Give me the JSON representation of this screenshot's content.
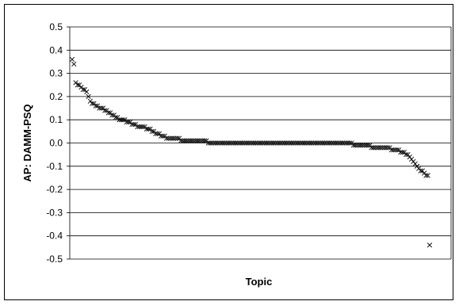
{
  "chart_data": {
    "type": "scatter",
    "title": "",
    "xlabel": "Topic",
    "ylabel": "AP: DAMM-PSQ",
    "ylim": [
      -0.5,
      0.5
    ],
    "yticks": [
      0.5,
      0.4,
      0.3,
      0.2,
      0.1,
      0.0,
      -0.1,
      -0.2,
      -0.3,
      -0.4,
      -0.5
    ],
    "ytick_labels": [
      "0.5",
      "0.4",
      "0.3",
      "0.2",
      "0.1",
      "0.0",
      "-0.1",
      "-0.2",
      "-0.3",
      "-0.4",
      "-0.5"
    ],
    "grid": "horizontal",
    "legend": "none",
    "marker": "x",
    "colors": {
      "marker": "#000000",
      "grid": "#000000",
      "background": "#ffffff"
    },
    "series": [
      {
        "values": [
          0.36,
          0.34,
          0.26,
          0.25,
          0.25,
          0.24,
          0.23,
          0.23,
          0.22,
          0.2,
          0.18,
          0.17,
          0.17,
          0.16,
          0.16,
          0.15,
          0.15,
          0.15,
          0.14,
          0.14,
          0.13,
          0.13,
          0.12,
          0.12,
          0.11,
          0.11,
          0.1,
          0.1,
          0.1,
          0.1,
          0.09,
          0.09,
          0.09,
          0.08,
          0.08,
          0.08,
          0.07,
          0.07,
          0.07,
          0.07,
          0.07,
          0.06,
          0.06,
          0.06,
          0.05,
          0.05,
          0.04,
          0.04,
          0.04,
          0.03,
          0.03,
          0.03,
          0.02,
          0.02,
          0.02,
          0.02,
          0.02,
          0.02,
          0.02,
          0.02,
          0.01,
          0.01,
          0.01,
          0.01,
          0.01,
          0.01,
          0.01,
          0.01,
          0.01,
          0.01,
          0.01,
          0.01,
          0.01,
          0.01,
          0.01,
          0.0,
          0.0,
          0.0,
          0.0,
          0.0,
          0.0,
          0.0,
          0.0,
          0.0,
          0.0,
          0.0,
          0.0,
          0.0,
          0.0,
          0.0,
          0.0,
          0.0,
          0.0,
          0.0,
          0.0,
          0.0,
          0.0,
          0.0,
          0.0,
          0.0,
          0.0,
          0.0,
          0.0,
          0.0,
          0.0,
          0.0,
          0.0,
          0.0,
          0.0,
          0.0,
          0.0,
          0.0,
          0.0,
          0.0,
          0.0,
          0.0,
          0.0,
          0.0,
          0.0,
          0.0,
          0.0,
          0.0,
          0.0,
          0.0,
          0.0,
          0.0,
          0.0,
          0.0,
          0.0,
          0.0,
          0.0,
          0.0,
          0.0,
          0.0,
          0.0,
          0.0,
          0.0,
          0.0,
          0.0,
          0.0,
          0.0,
          0.0,
          0.0,
          0.0,
          0.0,
          0.0,
          0.0,
          0.0,
          0.0,
          0.0,
          0.0,
          0.0,
          0.0,
          0.0,
          0.0,
          -0.01,
          -0.01,
          -0.01,
          -0.01,
          -0.01,
          -0.01,
          -0.01,
          -0.01,
          -0.01,
          -0.01,
          -0.02,
          -0.02,
          -0.02,
          -0.02,
          -0.02,
          -0.02,
          -0.02,
          -0.02,
          -0.02,
          -0.02,
          -0.02,
          -0.03,
          -0.03,
          -0.03,
          -0.03,
          -0.03,
          -0.04,
          -0.04,
          -0.04,
          -0.05,
          -0.05,
          -0.06,
          -0.07,
          -0.08,
          -0.09,
          -0.1,
          -0.11,
          -0.12,
          -0.12,
          -0.13,
          -0.14,
          -0.14,
          -0.44
        ]
      }
    ]
  }
}
